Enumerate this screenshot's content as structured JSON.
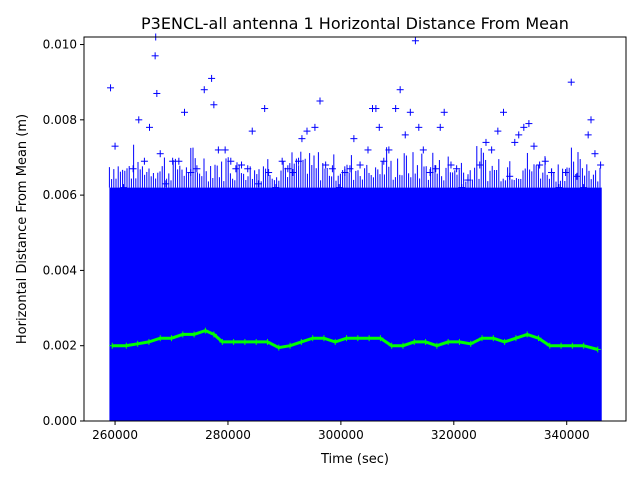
{
  "chart_data": {
    "type": "scatter",
    "title": "P3ENCL-all antenna 1 Horizontal Distance From Mean",
    "xlabel": "Time (sec)",
    "ylabel": "Horizontal Distance From Mean (m)",
    "xlim": [
      254500,
      350500
    ],
    "ylim": [
      0,
      0.0102
    ],
    "x_ticks": [
      260000,
      280000,
      300000,
      320000,
      340000
    ],
    "x_tick_labels": [
      "260000",
      "280000",
      "300000",
      "320000",
      "340000"
    ],
    "y_ticks": [
      0.0,
      0.002,
      0.004,
      0.006,
      0.008,
      0.01
    ],
    "y_tick_labels": [
      "0.000",
      "0.002",
      "0.004",
      "0.006",
      "0.008",
      "0.010"
    ],
    "grid": false,
    "series": [
      {
        "marker": "plus",
        "color": "#0000ff",
        "points": [
          [
            259200,
            0.00885
          ],
          [
            260000,
            0.0073
          ],
          [
            261500,
            0.0062
          ],
          [
            263200,
            0.0067
          ],
          [
            264200,
            0.008
          ],
          [
            265200,
            0.0069
          ],
          [
            266100,
            0.0078
          ],
          [
            267100,
            0.0097
          ],
          [
            267200,
            0.0102
          ],
          [
            267400,
            0.0087
          ],
          [
            268000,
            0.0071
          ],
          [
            269000,
            0.0063
          ],
          [
            270200,
            0.0069
          ],
          [
            271300,
            0.0069
          ],
          [
            272300,
            0.0082
          ],
          [
            273400,
            0.0066
          ],
          [
            274500,
            0.0067
          ],
          [
            275800,
            0.0088
          ],
          [
            277100,
            0.0091
          ],
          [
            277500,
            0.0084
          ],
          [
            278300,
            0.0072
          ],
          [
            279500,
            0.0072
          ],
          [
            280500,
            0.0069
          ],
          [
            281400,
            0.0067
          ],
          [
            282400,
            0.0068
          ],
          [
            283500,
            0.0067
          ],
          [
            284300,
            0.0077
          ],
          [
            285400,
            0.0063
          ],
          [
            286500,
            0.0083
          ],
          [
            287200,
            0.0066
          ],
          [
            288500,
            0.0062
          ],
          [
            289600,
            0.0069
          ],
          [
            290600,
            0.0067
          ],
          [
            291500,
            0.0066
          ],
          [
            292500,
            0.0069
          ],
          [
            293100,
            0.0075
          ],
          [
            294000,
            0.0077
          ],
          [
            295400,
            0.0078
          ],
          [
            296300,
            0.0085
          ],
          [
            297300,
            0.0068
          ],
          [
            298500,
            0.0067
          ],
          [
            299700,
            0.0062
          ],
          [
            300700,
            0.0066
          ],
          [
            301600,
            0.0067
          ],
          [
            302300,
            0.0075
          ],
          [
            303400,
            0.0068
          ],
          [
            304800,
            0.0072
          ],
          [
            305600,
            0.0083
          ],
          [
            306200,
            0.0083
          ],
          [
            306800,
            0.0078
          ],
          [
            307600,
            0.0069
          ],
          [
            308500,
            0.0072
          ],
          [
            309700,
            0.0083
          ],
          [
            310500,
            0.0088
          ],
          [
            311400,
            0.0076
          ],
          [
            312300,
            0.0082
          ],
          [
            313200,
            0.0101
          ],
          [
            313800,
            0.0078
          ],
          [
            314600,
            0.0072
          ],
          [
            315800,
            0.0066
          ],
          [
            316800,
            0.0067
          ],
          [
            317600,
            0.0078
          ],
          [
            318300,
            0.0082
          ],
          [
            319500,
            0.0068
          ],
          [
            320500,
            0.0067
          ],
          [
            321400,
            0.0062
          ],
          [
            322500,
            0.0064
          ],
          [
            323600,
            0.0061
          ],
          [
            324600,
            0.0068
          ],
          [
            325700,
            0.0074
          ],
          [
            326700,
            0.0072
          ],
          [
            327800,
            0.0077
          ],
          [
            328800,
            0.0082
          ],
          [
            329900,
            0.0065
          ],
          [
            330800,
            0.0074
          ],
          [
            331500,
            0.0076
          ],
          [
            332400,
            0.0078
          ],
          [
            333300,
            0.0079
          ],
          [
            334200,
            0.0073
          ],
          [
            335200,
            0.0068
          ],
          [
            336200,
            0.0069
          ],
          [
            337300,
            0.0066
          ],
          [
            338600,
            0.0062
          ],
          [
            339800,
            0.0066
          ],
          [
            340800,
            0.009
          ],
          [
            341800,
            0.0065
          ],
          [
            343000,
            0.0062
          ],
          [
            343800,
            0.0076
          ],
          [
            344300,
            0.008
          ],
          [
            345000,
            0.0071
          ],
          [
            346000,
            0.0068
          ]
        ],
        "band": {
          "x_range": [
            259000,
            346200
          ],
          "y_range": [
            0.0,
            0.0062
          ]
        }
      },
      {
        "marker": "plus",
        "color": "#00ff00",
        "points": [
          [
            259500,
            0.002
          ],
          [
            262000,
            0.002
          ],
          [
            264000,
            0.00205
          ],
          [
            266000,
            0.0021
          ],
          [
            268000,
            0.0022
          ],
          [
            270000,
            0.0022
          ],
          [
            272000,
            0.0023
          ],
          [
            274000,
            0.0023
          ],
          [
            276000,
            0.0024
          ],
          [
            277500,
            0.0023
          ],
          [
            279000,
            0.0021
          ],
          [
            281000,
            0.0021
          ],
          [
            283000,
            0.0021
          ],
          [
            285000,
            0.0021
          ],
          [
            287000,
            0.0021
          ],
          [
            289000,
            0.00195
          ],
          [
            291000,
            0.002
          ],
          [
            293000,
            0.0021
          ],
          [
            295000,
            0.0022
          ],
          [
            297000,
            0.0022
          ],
          [
            299000,
            0.0021
          ],
          [
            301000,
            0.0022
          ],
          [
            303000,
            0.0022
          ],
          [
            305000,
            0.0022
          ],
          [
            307000,
            0.0022
          ],
          [
            309000,
            0.002
          ],
          [
            311000,
            0.002
          ],
          [
            313000,
            0.0021
          ],
          [
            315000,
            0.0021
          ],
          [
            317000,
            0.002
          ],
          [
            319000,
            0.0021
          ],
          [
            321000,
            0.0021
          ],
          [
            323000,
            0.00205
          ],
          [
            325000,
            0.0022
          ],
          [
            327000,
            0.0022
          ],
          [
            329000,
            0.0021
          ],
          [
            331000,
            0.0022
          ],
          [
            333000,
            0.0023
          ],
          [
            335000,
            0.0022
          ],
          [
            337000,
            0.002
          ],
          [
            339000,
            0.002
          ],
          [
            341000,
            0.002
          ],
          [
            343000,
            0.002
          ],
          [
            345500,
            0.0019
          ]
        ]
      }
    ]
  }
}
